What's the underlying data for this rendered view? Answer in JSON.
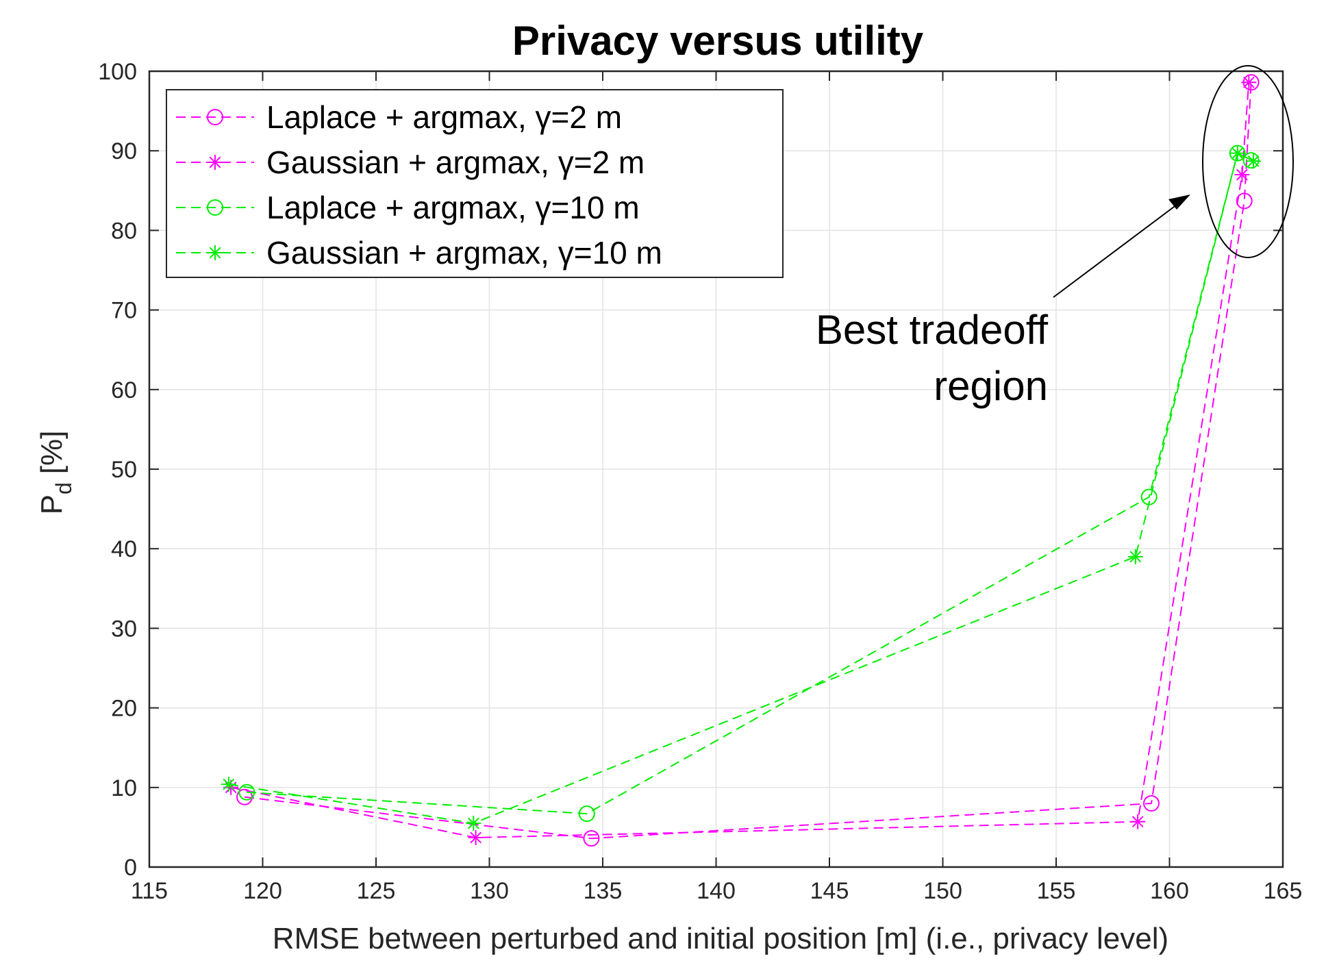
{
  "chart_data": {
    "type": "line",
    "title": "Privacy versus utility",
    "xlabel": "RMSE between perturbed and initial position [m] (i.e., privacy level)",
    "ylabel_main": "P",
    "ylabel_sub": "d",
    "ylabel_unit": "[%]",
    "xlim": [
      115,
      165
    ],
    "ylim": [
      0,
      100
    ],
    "xticks": [
      115,
      120,
      125,
      130,
      135,
      140,
      145,
      150,
      155,
      160,
      165
    ],
    "yticks": [
      0,
      10,
      20,
      30,
      40,
      50,
      60,
      70,
      80,
      90,
      100
    ],
    "grid": true,
    "legend_position": "top-left",
    "series": [
      {
        "name": "Laplace + argmax, γ=2 m",
        "color": "#ff00ff",
        "marker": "circle",
        "x": [
          119.2,
          134.5,
          159.2,
          163.3,
          163.6
        ],
        "y": [
          8.8,
          3.6,
          8.0,
          83.7,
          98.6
        ]
      },
      {
        "name": "Gaussian + argmax, γ=2 m",
        "color": "#ff00ff",
        "marker": "asterisk",
        "x": [
          118.6,
          129.4,
          158.6,
          163.2,
          163.5
        ],
        "y": [
          10.0,
          3.7,
          5.7,
          87.0,
          98.6
        ]
      },
      {
        "name": "Laplace + argmax, γ=10 m",
        "color": "#00ee00",
        "marker": "circle",
        "x": [
          119.3,
          134.3,
          159.1,
          163.0,
          163.6
        ],
        "y": [
          9.4,
          6.7,
          46.5,
          89.7,
          88.8
        ]
      },
      {
        "name": "Gaussian + argmax, γ=10 m",
        "color": "#00ee00",
        "marker": "asterisk",
        "x": [
          118.5,
          129.3,
          158.5,
          163.0,
          163.7
        ],
        "y": [
          10.4,
          5.5,
          39.0,
          89.7,
          88.7
        ]
      }
    ],
    "annotation": {
      "line1": "Best tradeoff",
      "line2": "region"
    }
  }
}
